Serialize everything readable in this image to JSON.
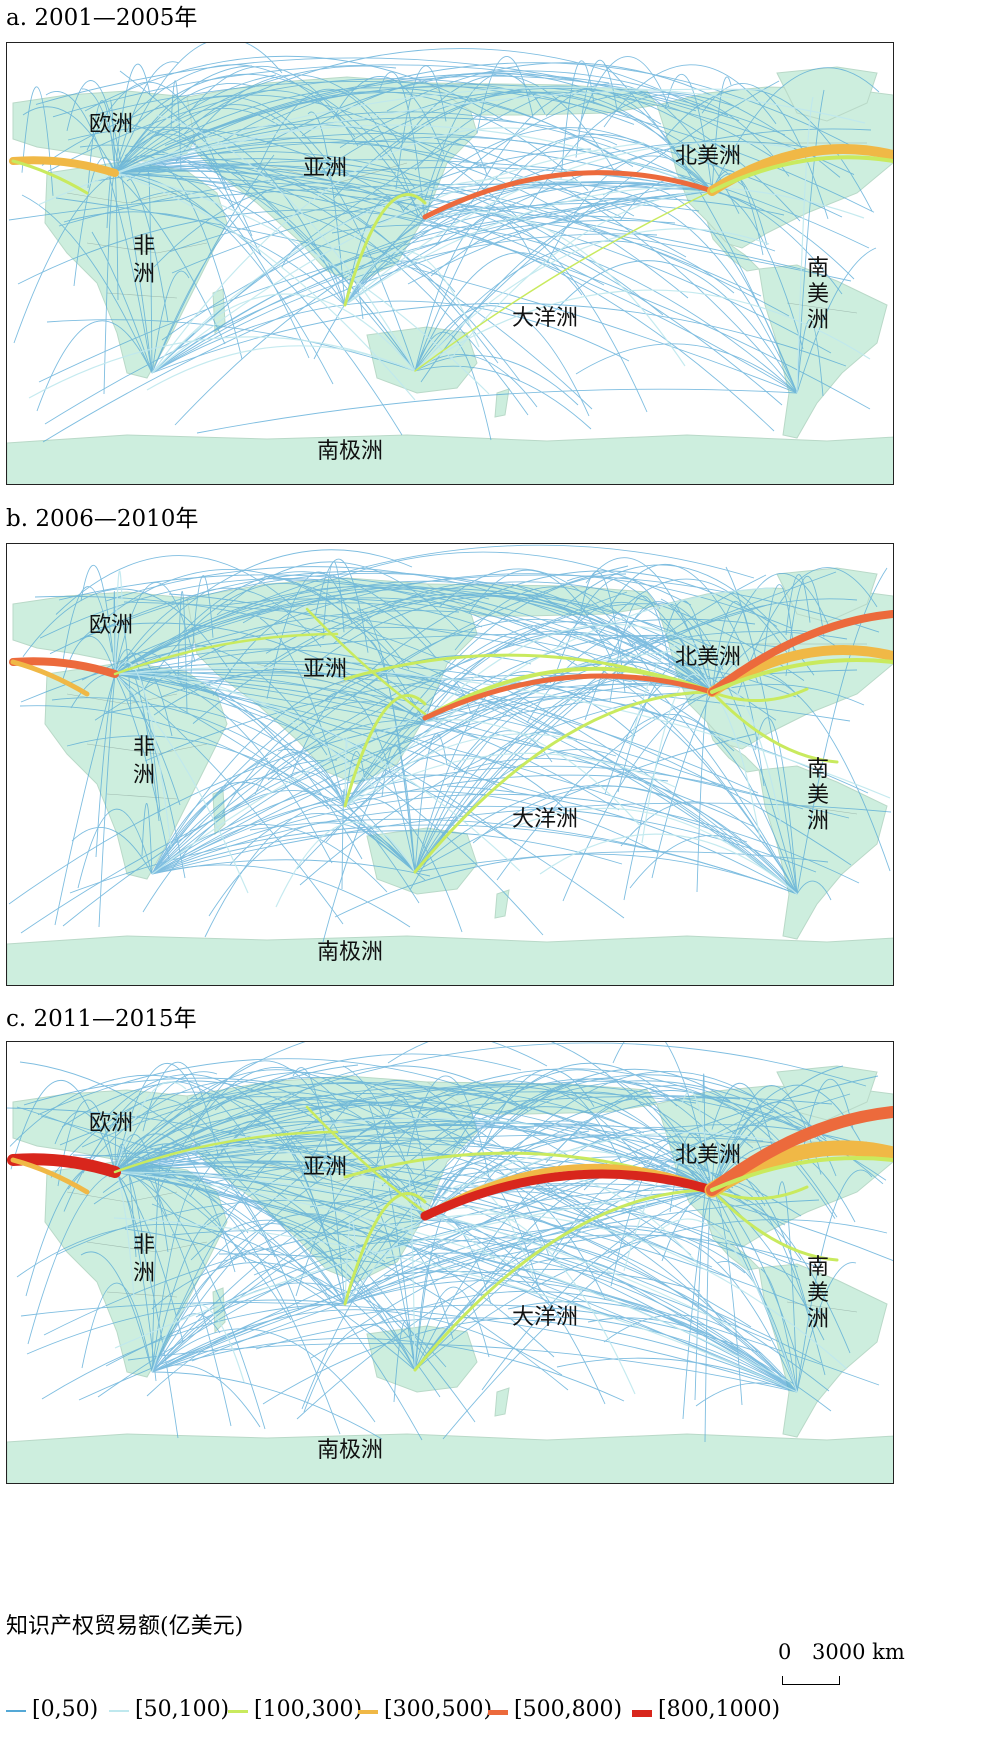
{
  "colors": {
    "land": "#cdeede",
    "land_stroke": "#b9d9c8",
    "border": "#8aa39a",
    "class_0_50": "#54a8d6",
    "class_50_100": "#bfe8ee",
    "class_100_300": "#c9ea5e",
    "class_300_500": "#f0b846",
    "class_500_800": "#ec6a3c",
    "class_800_1000": "#d8261c"
  },
  "panels": [
    {
      "title": "a. 2001—2005年",
      "labels": {
        "europe": "欧洲",
        "asia": "亚洲",
        "africa_1": "非",
        "africa_2": "洲",
        "north_america": "北美洲",
        "south_america_1": "南",
        "south_america_2": "美",
        "south_america_3": "洲",
        "oceania": "大洋洲",
        "antarctica": "南极洲"
      }
    },
    {
      "title": "b. 2006—2010年",
      "labels": {
        "europe": "欧洲",
        "asia": "亚洲",
        "africa_1": "非",
        "africa_2": "洲",
        "north_america": "北美洲",
        "south_america_1": "南",
        "south_america_2": "美",
        "south_america_3": "洲",
        "oceania": "大洋洲",
        "antarctica": "南极洲"
      }
    },
    {
      "title": "c. 2011—2015年",
      "labels": {
        "europe": "欧洲",
        "asia": "亚洲",
        "africa_1": "非",
        "africa_2": "洲",
        "north_america": "北美洲",
        "south_america_1": "南",
        "south_america_2": "美",
        "south_america_3": "洲",
        "oceania": "大洋洲",
        "antarctica": "南极洲"
      }
    }
  ],
  "legend": {
    "title": "知识产权贸易额(亿美元)",
    "items": [
      {
        "label": "[0,50)",
        "color": "#54a8d6"
      },
      {
        "label": "[50,100)",
        "color": "#bfe8ee"
      },
      {
        "label": "[100,300)",
        "color": "#c9ea5e"
      },
      {
        "label": "[300,500)",
        "color": "#f0b846"
      },
      {
        "label": "[500,800)",
        "color": "#ec6a3c"
      },
      {
        "label": "[800,1000)",
        "color": "#d8261c"
      }
    ]
  },
  "scale_bar": {
    "zero": "0",
    "distance": "3000 km"
  }
}
